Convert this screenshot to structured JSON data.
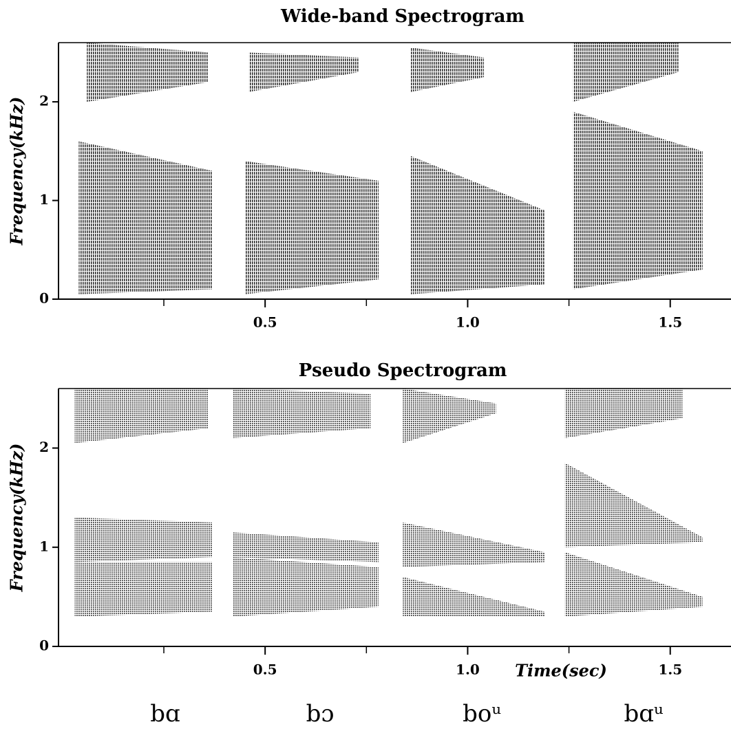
{
  "chart_data": [
    {
      "type": "spectrogram",
      "title": "Wide-band Spectrogram",
      "ylabel": "Frequency(kHz)",
      "xlim": [
        -0.01,
        1.65
      ],
      "ylim": [
        0,
        2.6
      ],
      "yticks": [
        0,
        1,
        2
      ],
      "xticks": [
        0.5,
        {
          "value": 1,
          "label": "1.0"
        },
        1.5
      ],
      "minor_xticks": [
        0.25,
        0.75,
        1.25
      ],
      "bands": [
        {
          "time": [
            0.04,
            0.37
          ],
          "low": [
            0.05,
            0.1
          ],
          "high": [
            1.6,
            1.3
          ]
        },
        {
          "time": [
            0.06,
            0.36
          ],
          "low": [
            2.0,
            2.2
          ],
          "high": [
            2.6,
            2.5
          ]
        },
        {
          "time": [
            0.45,
            0.78
          ],
          "low": [
            0.05,
            0.2
          ],
          "high": [
            1.4,
            1.2
          ]
        },
        {
          "time": [
            0.46,
            0.73
          ],
          "low": [
            2.1,
            2.3
          ],
          "high": [
            2.5,
            2.45
          ]
        },
        {
          "time": [
            0.86,
            1.19
          ],
          "low": [
            0.05,
            0.15
          ],
          "high": [
            1.45,
            0.9
          ]
        },
        {
          "time": [
            0.86,
            1.04
          ],
          "low": [
            2.1,
            2.25
          ],
          "high": [
            2.55,
            2.45
          ]
        },
        {
          "time": [
            1.26,
            1.58
          ],
          "low": [
            0.1,
            0.3
          ],
          "high": [
            1.9,
            1.5
          ]
        },
        {
          "time": [
            1.26,
            1.52
          ],
          "low": [
            2.0,
            2.3
          ],
          "high": [
            2.6,
            2.6
          ]
        }
      ]
    },
    {
      "type": "spectrogram",
      "title": "Pseudo Spectrogram",
      "ylabel": "Frequency(kHz)",
      "xlabel": "Time(sec)",
      "xlim": [
        -0.01,
        1.65
      ],
      "ylim": [
        0,
        2.6
      ],
      "yticks": [
        0,
        1,
        2
      ],
      "xticks": [
        0.5,
        {
          "value": 1,
          "label": "1.0"
        },
        1.5
      ],
      "minor_xticks": [
        0.25,
        0.75,
        1.25
      ],
      "bands": [
        {
          "time": [
            0.03,
            0.37
          ],
          "low": [
            0.3,
            0.35
          ],
          "high": [
            0.85,
            0.85
          ]
        },
        {
          "time": [
            0.03,
            0.37
          ],
          "low": [
            0.85,
            0.9
          ],
          "high": [
            1.3,
            1.25
          ]
        },
        {
          "time": [
            0.03,
            0.36
          ],
          "low": [
            2.05,
            2.2
          ],
          "high": [
            2.6,
            2.6
          ]
        },
        {
          "time": [
            0.42,
            0.78
          ],
          "low": [
            0.3,
            0.4
          ],
          "high": [
            0.9,
            0.8
          ]
        },
        {
          "time": [
            0.42,
            0.78
          ],
          "low": [
            0.9,
            0.85
          ],
          "high": [
            1.15,
            1.05
          ]
        },
        {
          "time": [
            0.42,
            0.76
          ],
          "low": [
            2.1,
            2.2
          ],
          "high": [
            2.6,
            2.55
          ]
        },
        {
          "time": [
            0.84,
            1.19
          ],
          "low": [
            0.3,
            0.3
          ],
          "high": [
            0.7,
            0.35
          ]
        },
        {
          "time": [
            0.84,
            1.19
          ],
          "low": [
            0.8,
            0.85
          ],
          "high": [
            1.25,
            0.95
          ]
        },
        {
          "time": [
            0.84,
            1.07
          ],
          "low": [
            2.05,
            2.35
          ],
          "high": [
            2.6,
            2.45
          ]
        },
        {
          "time": [
            1.24,
            1.58
          ],
          "low": [
            0.3,
            0.4
          ],
          "high": [
            0.95,
            0.5
          ]
        },
        {
          "time": [
            1.24,
            1.58
          ],
          "low": [
            1.0,
            1.05
          ],
          "high": [
            1.85,
            1.1
          ]
        },
        {
          "time": [
            1.24,
            1.53
          ],
          "low": [
            2.1,
            2.3
          ],
          "high": [
            2.6,
            2.6
          ]
        }
      ]
    }
  ],
  "captions": [
    "bɑ",
    "bɔ",
    "boᵘ",
    "bɑᵘ"
  ]
}
